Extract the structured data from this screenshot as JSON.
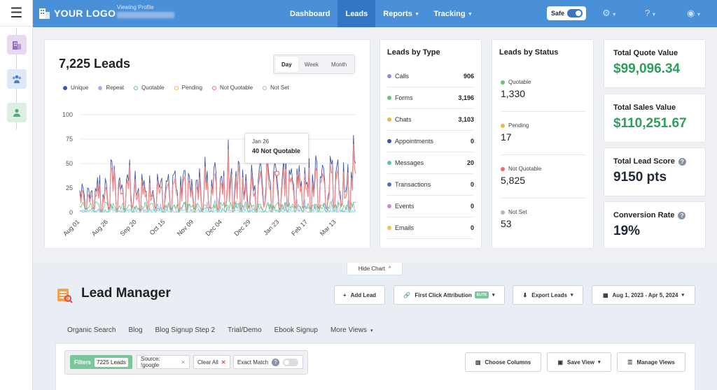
{
  "brand": {
    "logo": "YOUR LOGO",
    "viewing_label": "Viewing Profile"
  },
  "nav": {
    "items": [
      "Dashboard",
      "Leads",
      "Reports",
      "Tracking"
    ],
    "safe_label": "Safe"
  },
  "chart_card": {
    "title": "7,225 Leads",
    "range": [
      "Day",
      "Week",
      "Month"
    ],
    "tooltip_date": "Jan 26",
    "tooltip_value": "40 Not Quotable"
  },
  "chart_data": {
    "type": "line",
    "title": "7,225 Leads",
    "legend": [
      "Unique",
      "Repeat",
      "Quotable",
      "Pending",
      "Not Quotable",
      "Not Set"
    ],
    "colors": {
      "Unique": "#3e56a8",
      "Repeat": "#9fb2e8",
      "Quotable": "#66c27a",
      "Pending": "#f0b25b",
      "Not Quotable": "#ec8c8c",
      "Not Set": "#b3b9c2"
    },
    "yticks": [
      "100",
      "75",
      "50",
      "25",
      "0"
    ],
    "ylim": [
      0,
      100
    ],
    "xticks": [
      "Aug 01",
      "Aug 26",
      "Sep 20",
      "Oct 15",
      "Nov 09",
      "Dec 04",
      "Dec 29",
      "Jan 23",
      "Feb 17",
      "Mar 13"
    ]
  },
  "leads_by_type": {
    "title": "Leads by Type",
    "items": [
      {
        "label": "Calls",
        "value": "906",
        "color": "#8f8fd8"
      },
      {
        "label": "Forms",
        "value": "3,196",
        "color": "#66c27a"
      },
      {
        "label": "Chats",
        "value": "3,103",
        "color": "#f0b25b"
      },
      {
        "label": "Appointments",
        "value": "0",
        "color": "#3e56a8"
      },
      {
        "label": "Messages",
        "value": "20",
        "color": "#5ec2b6"
      },
      {
        "label": "Transactions",
        "value": "0",
        "color": "#4f6ec9"
      },
      {
        "label": "Events",
        "value": "0",
        "color": "#c48bd8"
      },
      {
        "label": "Emails",
        "value": "0",
        "color": "#f0c45b"
      }
    ]
  },
  "leads_by_status": {
    "title": "Leads by Status",
    "items": [
      {
        "label": "Quotable",
        "value": "1,330",
        "color": "#66c27a"
      },
      {
        "label": "Pending",
        "value": "17",
        "color": "#f0b25b"
      },
      {
        "label": "Not Quotable",
        "value": "5,825",
        "color": "#ec6b6b"
      },
      {
        "label": "Not Set",
        "value": "53",
        "color": "#b3b9c2"
      }
    ]
  },
  "kpis": [
    {
      "title": "Total Quote Value",
      "value": "$99,096.34",
      "color": "#2e9e5b"
    },
    {
      "title": "Total Sales Value",
      "value": "$110,251.67",
      "color": "#2e9e5b"
    },
    {
      "title": "Total Lead Score",
      "value": "9150 pts",
      "color": "#222222"
    },
    {
      "title": "Conversion Rate",
      "value": "19%",
      "color": "#222222"
    }
  ],
  "lead_manager": {
    "hide_chart": "Hide Chart",
    "title": "Lead Manager",
    "add_lead": "Add Lead",
    "attribution": "First Click Attribution",
    "elite": "ELITE",
    "export": "Export Leads",
    "date_range": "Aug 1, 2023 - Apr 5, 2024",
    "views": [
      "Organic Search",
      "Blog",
      "Blog Signup Step 2",
      "Trial/Demo",
      "Ebook Signup",
      "More Views"
    ],
    "filters_label": "Filters",
    "leads_count": "7225 Leads",
    "source_filter": "Source: !google",
    "clear_all": "Clear All",
    "exact_match": "Exact Match",
    "choose_columns": "Choose Columns",
    "save_view": "Save View",
    "manage_views": "Manage Views"
  }
}
